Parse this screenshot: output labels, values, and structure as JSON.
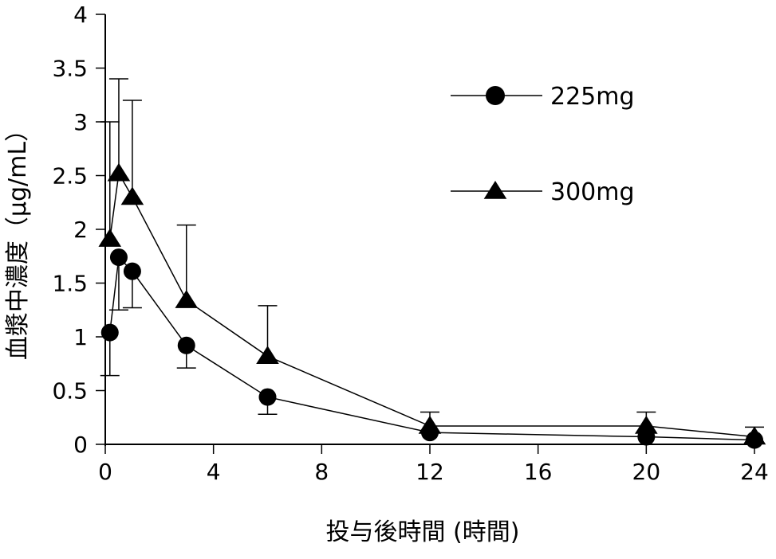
{
  "chart_data": {
    "type": "line",
    "title": "",
    "xlabel": "投与後時間 (時間)",
    "ylabel": "血漿中濃度（μg/mL）",
    "xlim": [
      0,
      24
    ],
    "ylim": [
      0,
      4
    ],
    "xticks": [
      0,
      4,
      8,
      12,
      16,
      20,
      24
    ],
    "xtick_labels": [
      "0",
      "4",
      "8",
      "12",
      "16",
      "20",
      "24"
    ],
    "yticks": [
      0,
      0.5,
      1,
      1.5,
      2,
      2.5,
      3,
      3.5,
      4
    ],
    "ytick_labels": [
      "0",
      "0.5",
      "1",
      "1.5",
      "2",
      "2.5",
      "3",
      "3.5",
      "4"
    ],
    "grid": false,
    "legend_position": "top-right",
    "x": [
      0.17,
      0.5,
      1,
      3,
      6,
      12,
      20,
      24
    ],
    "series": [
      {
        "name": "225mg",
        "marker": "circle",
        "color": "#000000",
        "values": [
          1.04,
          1.74,
          1.61,
          0.92,
          0.44,
          0.11,
          0.07,
          0.04
        ],
        "error": [
          0.4,
          0.49,
          0.34,
          0.21,
          0.16,
          null,
          null,
          null
        ],
        "error_direction": "down"
      },
      {
        "name": "300mg",
        "marker": "triangle",
        "color": "#000000",
        "values": [
          1.91,
          2.52,
          2.3,
          1.34,
          0.82,
          0.17,
          0.17,
          0.07
        ],
        "error": [
          1.09,
          0.88,
          0.9,
          0.7,
          0.47,
          0.13,
          0.13,
          0.09
        ],
        "error_direction": "up"
      }
    ]
  }
}
